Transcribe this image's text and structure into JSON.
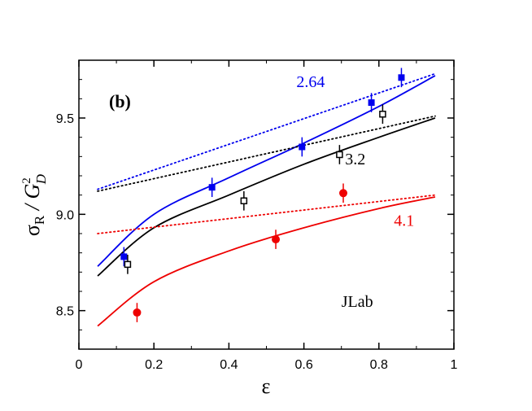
{
  "chart_data": {
    "type": "scatter",
    "panel_label": "(b)",
    "xlabel": "ε",
    "ylabel_main": "σ",
    "ylabel_sub": "R",
    "ylabel_sep": " / ",
    "ylabel_den": "G",
    "ylabel_den_sup": "2",
    "ylabel_den_sub": "D",
    "xlim": [
      0,
      1
    ],
    "ylim": [
      8.3,
      9.8
    ],
    "xticks": [
      0,
      0.2,
      0.4,
      0.6,
      0.8,
      1
    ],
    "xtick_labels": [
      "0",
      "0.2",
      "0.4",
      "0.6",
      "0.8",
      "1"
    ],
    "yticks": [
      8.5,
      9.0,
      9.5
    ],
    "ytick_labels": [
      "8.5",
      "9.0",
      "9.5"
    ],
    "annotations": [
      {
        "text": "2.64",
        "x": 0.58,
        "y": 9.66,
        "color": "#0000ee"
      },
      {
        "text": "3.2",
        "x": 0.71,
        "y": 9.26,
        "color": "#000000"
      },
      {
        "text": "4.1",
        "x": 0.84,
        "y": 8.94,
        "color": "#ee0000"
      },
      {
        "text": "JLab",
        "x": 0.7,
        "y": 8.52,
        "color": "#000000"
      }
    ],
    "series": [
      {
        "name": "2.64",
        "color": "#0000ee",
        "marker": "square-filled",
        "points": [
          {
            "x": 0.12,
            "y": 8.78,
            "err": 0.05
          },
          {
            "x": 0.355,
            "y": 9.14,
            "err": 0.05
          },
          {
            "x": 0.595,
            "y": 9.35,
            "err": 0.05
          },
          {
            "x": 0.78,
            "y": 9.58,
            "err": 0.05
          },
          {
            "x": 0.86,
            "y": 9.71,
            "err": 0.05
          }
        ],
        "fit_solid": {
          "x": [
            0.05,
            0.2,
            0.4,
            0.6,
            0.8,
            0.95
          ],
          "y": [
            8.73,
            9.0,
            9.19,
            9.37,
            9.56,
            9.72
          ]
        },
        "fit_dotted": {
          "x": [
            0.05,
            0.95
          ],
          "y": [
            9.13,
            9.73
          ]
        }
      },
      {
        "name": "3.2",
        "color": "#000000",
        "marker": "square-open",
        "points": [
          {
            "x": 0.13,
            "y": 8.74,
            "err": 0.05
          },
          {
            "x": 0.44,
            "y": 9.07,
            "err": 0.05
          },
          {
            "x": 0.695,
            "y": 9.31,
            "err": 0.05
          },
          {
            "x": 0.81,
            "y": 9.52,
            "err": 0.05
          }
        ],
        "fit_solid": {
          "x": [
            0.05,
            0.2,
            0.4,
            0.6,
            0.8,
            0.95
          ],
          "y": [
            8.68,
            8.93,
            9.1,
            9.26,
            9.4,
            9.5
          ]
        },
        "fit_dotted": {
          "x": [
            0.05,
            0.95
          ],
          "y": [
            9.12,
            9.51
          ]
        }
      },
      {
        "name": "4.1",
        "color": "#ee0000",
        "marker": "circle-filled",
        "points": [
          {
            "x": 0.155,
            "y": 8.49,
            "err": 0.05
          },
          {
            "x": 0.525,
            "y": 8.87,
            "err": 0.05
          },
          {
            "x": 0.705,
            "y": 9.11,
            "err": 0.05
          }
        ],
        "fit_solid": {
          "x": [
            0.05,
            0.2,
            0.4,
            0.6,
            0.8,
            0.95
          ],
          "y": [
            8.42,
            8.65,
            8.81,
            8.93,
            9.03,
            9.09
          ]
        },
        "fit_dotted": {
          "x": [
            0.05,
            0.95
          ],
          "y": [
            8.9,
            9.1
          ]
        }
      }
    ]
  }
}
